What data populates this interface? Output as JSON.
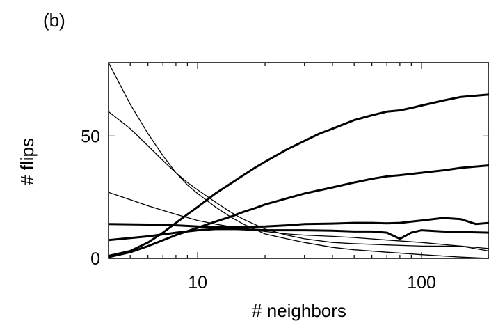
{
  "panel_label": "(b)",
  "chart_data": {
    "type": "line",
    "title": "",
    "xlabel": "# neighbors",
    "ylabel": "# flips",
    "xscale": "log",
    "xlim": [
      4,
      200
    ],
    "ylim": [
      0,
      80
    ],
    "x_ticks": [
      10,
      100
    ],
    "x_tick_labels": [
      "10",
      "100"
    ],
    "y_ticks": [
      0,
      50
    ],
    "y_tick_labels": [
      "0",
      "50"
    ],
    "grid": false,
    "legend": "none",
    "series": [
      {
        "style": "bold",
        "x": [
          4,
          5,
          6,
          7,
          8,
          9,
          10,
          12,
          14,
          16,
          18,
          20,
          25,
          30,
          35,
          40,
          50,
          60,
          70,
          80,
          90,
          100,
          125,
          150,
          175,
          200
        ],
        "y": [
          1,
          3,
          6.5,
          10.5,
          14.5,
          18,
          21,
          26.5,
          30.5,
          34,
          37,
          39.5,
          44.5,
          48,
          51,
          53,
          56.5,
          58.5,
          60,
          60.5,
          61.5,
          62.5,
          64.5,
          66,
          66.5,
          67
        ]
      },
      {
        "style": "bold",
        "x": [
          4,
          5,
          6,
          8,
          10,
          12,
          14,
          16,
          18,
          20,
          25,
          30,
          40,
          50,
          60,
          70,
          80,
          90,
          100,
          125,
          150,
          200
        ],
        "y": [
          0.5,
          2.5,
          5,
          9.5,
          12.5,
          15,
          17,
          19,
          20.5,
          22,
          24.5,
          26.5,
          29,
          31,
          32.5,
          33.5,
          34,
          34.5,
          35,
          36,
          37,
          38
        ]
      },
      {
        "style": "bold",
        "x": [
          4,
          6,
          8,
          10,
          12,
          15,
          20,
          25,
          30,
          40,
          50,
          60,
          70,
          80,
          90,
          100,
          125,
          150,
          175,
          200
        ],
        "y": [
          14,
          13.8,
          13.5,
          13,
          12.8,
          12.8,
          13,
          13.5,
          14,
          14.2,
          14.5,
          14.5,
          14.3,
          14.5,
          15,
          15.5,
          16.5,
          16,
          14,
          14.5
        ]
      },
      {
        "style": "bold",
        "x": [
          4,
          6,
          8,
          10,
          12,
          15,
          20,
          25,
          30,
          40,
          50,
          60,
          70,
          80,
          90,
          100,
          125,
          150,
          200
        ],
        "y": [
          7.5,
          9,
          10.5,
          11.5,
          12,
          12,
          11.5,
          11.5,
          11.5,
          11.3,
          11,
          11,
          10.5,
          8,
          10.5,
          11.5,
          11,
          10.8,
          10.5
        ]
      },
      {
        "style": "thin",
        "x": [
          4,
          5,
          6,
          7,
          8,
          9,
          10,
          12,
          14,
          16,
          20,
          25,
          30,
          40,
          50,
          70,
          100,
          150,
          200
        ],
        "y": [
          80,
          63,
          51,
          42,
          35,
          30,
          26.5,
          21,
          17,
          14,
          10,
          8,
          6.5,
          4.5,
          3.5,
          2.5,
          1.5,
          0.5,
          0
        ]
      },
      {
        "style": "thin",
        "x": [
          4,
          5,
          6,
          7,
          8,
          9,
          10,
          12,
          14,
          16,
          20,
          25,
          30,
          40,
          50,
          70,
          100,
          150,
          200
        ],
        "y": [
          60,
          53,
          46,
          40,
          35,
          31,
          28,
          23,
          19,
          16,
          12,
          9.5,
          8,
          6.5,
          6,
          5.5,
          5,
          5,
          3
        ]
      },
      {
        "style": "thin",
        "x": [
          4,
          5,
          6,
          8,
          10,
          12,
          15,
          20,
          25,
          30,
          40,
          50,
          70,
          100,
          150,
          200
        ],
        "y": [
          27,
          24,
          21.5,
          18,
          15.5,
          14,
          12.5,
          11,
          10,
          9.5,
          9,
          8.5,
          7.5,
          6.5,
          5,
          4
        ]
      }
    ]
  }
}
